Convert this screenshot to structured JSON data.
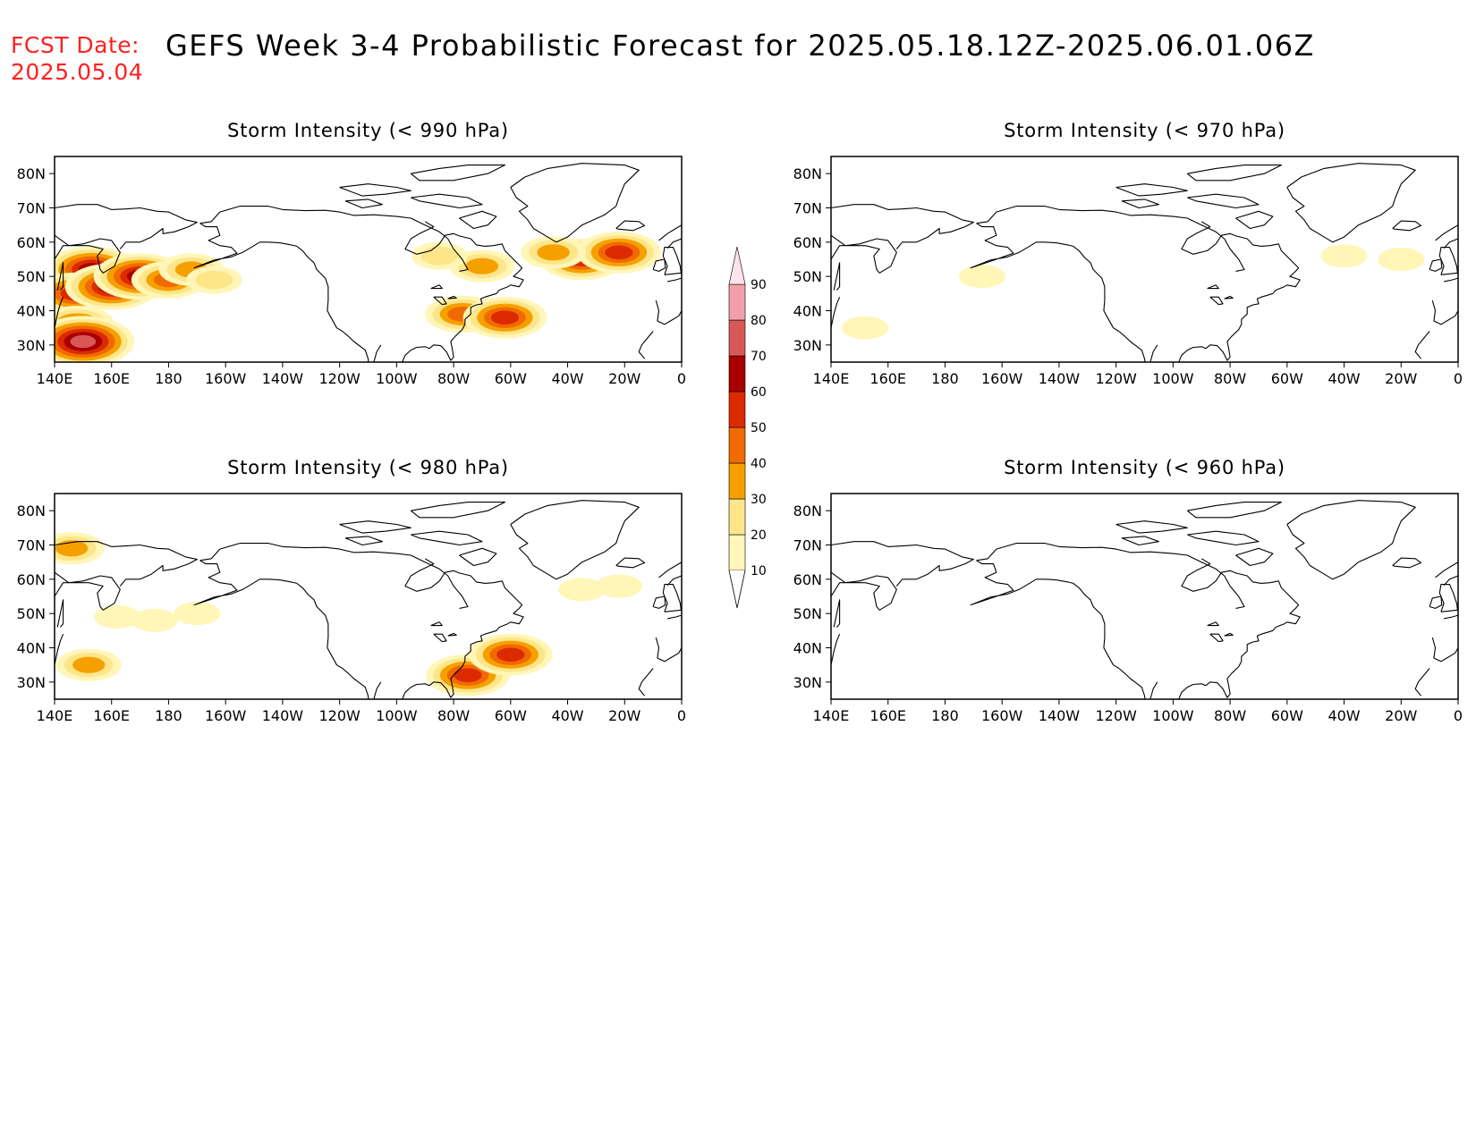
{
  "header": {
    "fcst_label": "FCST Date:",
    "fcst_date": "2025.05.04",
    "title": "GEFS Week 3-4 Probabilistic Forecast for 2025.05.18.12Z-2025.06.01.06Z"
  },
  "panels": [
    {
      "title": "Storm Intensity (< 990 hPa)"
    },
    {
      "title": "Storm Intensity (< 970 hPa)"
    },
    {
      "title": "Storm Intensity (< 980 hPa)"
    },
    {
      "title": "Storm Intensity (< 960 hPa)"
    }
  ],
  "axes": {
    "lat_labels": [
      "80N",
      "70N",
      "60N",
      "50N",
      "40N",
      "30N"
    ],
    "lon_labels": [
      "140E",
      "160E",
      "180",
      "160W",
      "140W",
      "120W",
      "100W",
      "80W",
      "60W",
      "40W",
      "20W",
      "0"
    ]
  },
  "colorbar": {
    "levels": [
      10,
      20,
      30,
      40,
      50,
      60,
      70,
      80,
      90
    ],
    "colors": [
      "#fff6b8",
      "#fde68a",
      "#f6a000",
      "#f06a00",
      "#dc2a00",
      "#a80000",
      "#d85858",
      "#f2a0a8",
      "#fde4e8"
    ]
  },
  "chart_data": [
    {
      "type": "heatmap",
      "title": "Storm Intensity (< 990 hPa)",
      "xlim": [
        140,
        360
      ],
      "ylim": [
        25,
        85
      ],
      "regions": [
        {
          "lon": 153,
          "lat": 52,
          "level": 60
        },
        {
          "lon": 147,
          "lat": 45,
          "level": 50
        },
        {
          "lon": 160,
          "lat": 47,
          "level": 60
        },
        {
          "lon": 170,
          "lat": 50,
          "level": 60
        },
        {
          "lon": 180,
          "lat": 49,
          "level": 40
        },
        {
          "lon": 148,
          "lat": 36,
          "level": 40
        },
        {
          "lon": 150,
          "lat": 31,
          "level": 70
        },
        {
          "lon": 188,
          "lat": 52,
          "level": 30
        },
        {
          "lon": 196,
          "lat": 49,
          "level": 20
        },
        {
          "lon": 290,
          "lat": 53,
          "level": 30
        },
        {
          "lon": 283,
          "lat": 39,
          "level": 40
        },
        {
          "lon": 298,
          "lat": 38,
          "level": 50
        },
        {
          "lon": 325,
          "lat": 55,
          "level": 50
        },
        {
          "lon": 338,
          "lat": 57,
          "level": 50
        },
        {
          "lon": 315,
          "lat": 57,
          "level": 30
        },
        {
          "lon": 275,
          "lat": 56,
          "level": 20
        }
      ]
    },
    {
      "type": "heatmap",
      "title": "Storm Intensity (< 970 hPa)",
      "xlim": [
        140,
        360
      ],
      "ylim": [
        25,
        85
      ],
      "regions": [
        {
          "lon": 152,
          "lat": 35,
          "level": 10
        },
        {
          "lon": 193,
          "lat": 50,
          "level": 10
        },
        {
          "lon": 320,
          "lat": 56,
          "level": 10
        },
        {
          "lon": 340,
          "lat": 55,
          "level": 10
        }
      ]
    },
    {
      "type": "heatmap",
      "title": "Storm Intensity (< 980 hPa)",
      "xlim": [
        140,
        360
      ],
      "ylim": [
        25,
        85
      ],
      "regions": [
        {
          "lon": 162,
          "lat": 49,
          "level": 10
        },
        {
          "lon": 175,
          "lat": 48,
          "level": 10
        },
        {
          "lon": 190,
          "lat": 50,
          "level": 10
        },
        {
          "lon": 152,
          "lat": 35,
          "level": 30
        },
        {
          "lon": 146,
          "lat": 69,
          "level": 30
        },
        {
          "lon": 285,
          "lat": 32,
          "level": 50
        },
        {
          "lon": 300,
          "lat": 38,
          "level": 50
        },
        {
          "lon": 325,
          "lat": 57,
          "level": 10
        },
        {
          "lon": 338,
          "lat": 58,
          "level": 10
        }
      ]
    },
    {
      "type": "heatmap",
      "title": "Storm Intensity (< 960 hPa)",
      "xlim": [
        140,
        360
      ],
      "ylim": [
        25,
        85
      ],
      "regions": []
    }
  ]
}
